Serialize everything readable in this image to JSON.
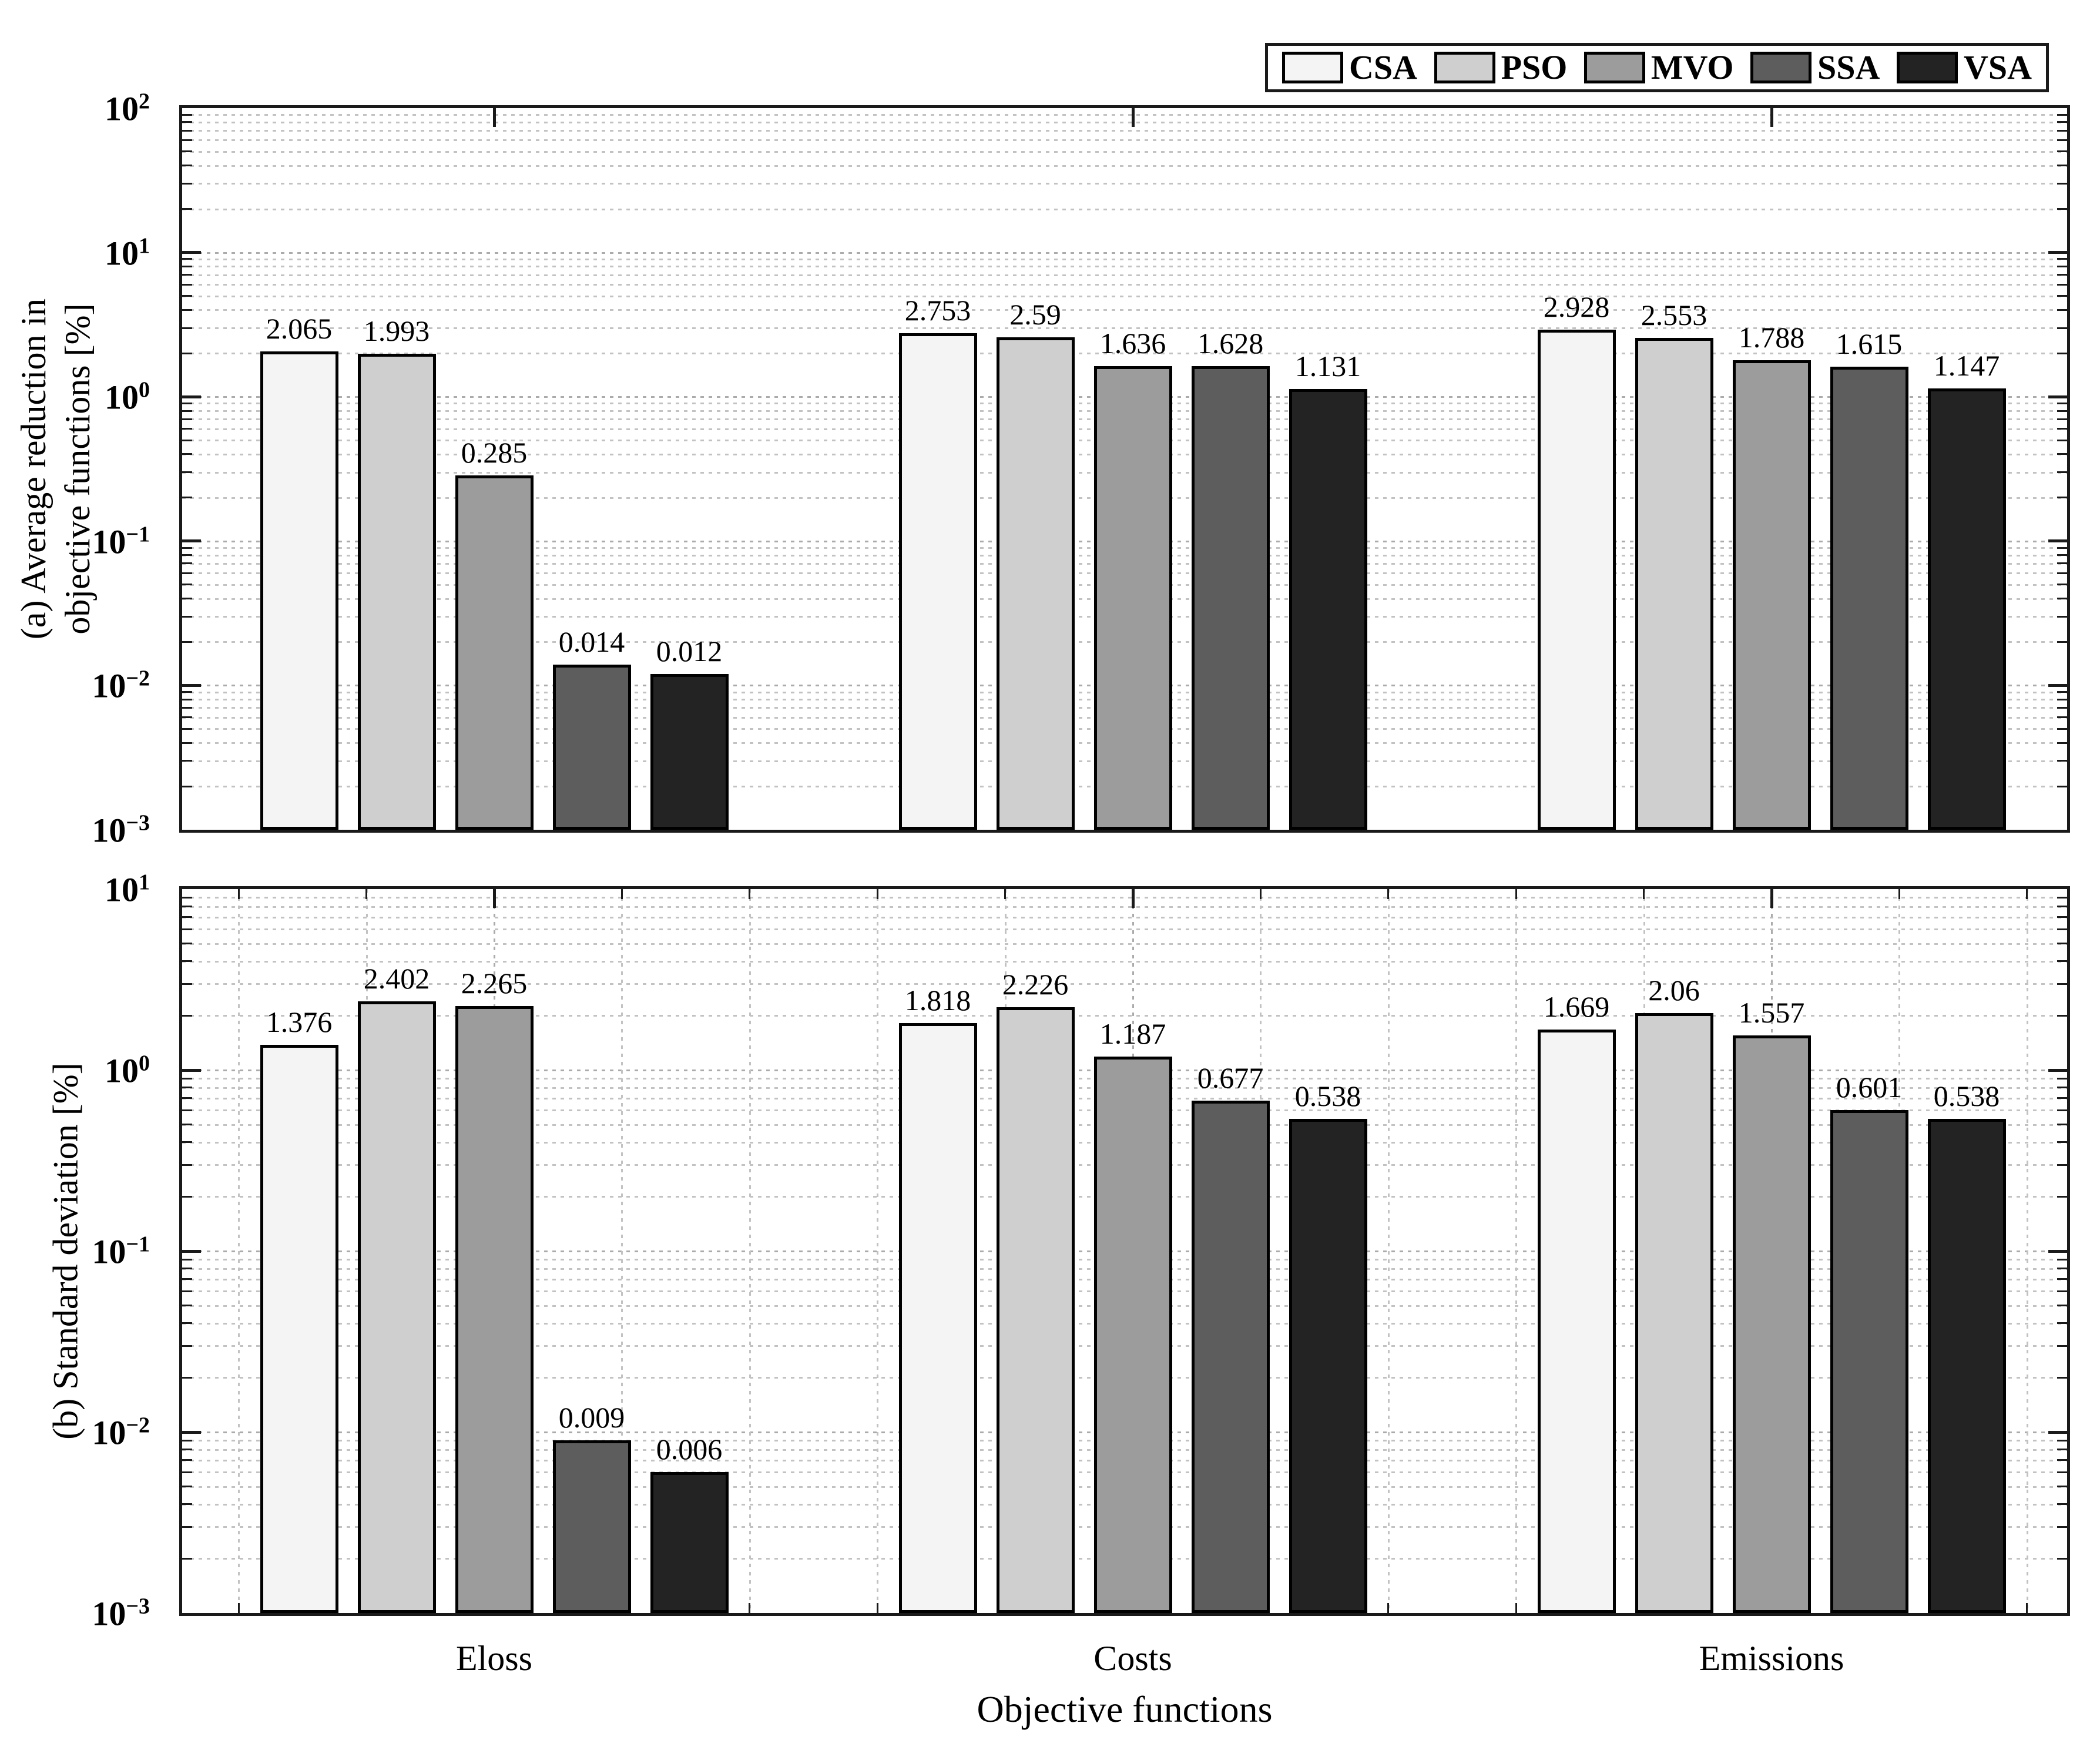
{
  "figure": {
    "xlabel": "Objective functions",
    "categories": [
      "Eloss",
      "Costs",
      "Emissions"
    ],
    "legend_labels": [
      "CSA",
      "PSO",
      "MVO",
      "SSA",
      "VSA"
    ],
    "colors": {
      "CSA": "#f4f4f4",
      "PSO": "#cfcfcf",
      "MVO": "#9c9c9c",
      "SSA": "#5d5d5d",
      "VSA": "#232323"
    },
    "axis_color": "#1a1a1a",
    "grid_color": "#c2c2c2"
  },
  "chart_data": [
    {
      "type": "bar",
      "panel": "a",
      "ylabel": "(a) Average reduction in\nobjective functions [%]",
      "yscale": "log",
      "ylim": [
        0.001,
        100
      ],
      "y_tick_exponents": [
        2,
        1,
        0,
        -1,
        -2,
        -3
      ],
      "categories": [
        "Eloss",
        "Costs",
        "Emissions"
      ],
      "series": [
        {
          "name": "CSA",
          "values": [
            2.065,
            2.753,
            2.928
          ]
        },
        {
          "name": "PSO",
          "values": [
            1.993,
            2.59,
            2.553
          ]
        },
        {
          "name": "MVO",
          "values": [
            0.285,
            1.636,
            1.788
          ]
        },
        {
          "name": "SSA",
          "values": [
            0.014,
            1.628,
            1.615
          ]
        },
        {
          "name": "VSA",
          "values": [
            0.012,
            1.131,
            1.147
          ]
        }
      ],
      "bar_value_labels": true,
      "grid": {
        "y_major": true,
        "y_minor": true,
        "x_major": false,
        "x_minor": false
      },
      "legend_position": "above-top-right"
    },
    {
      "type": "bar",
      "panel": "b",
      "ylabel": "(b) Standard deviation [%]",
      "xlabel": "Objective functions",
      "yscale": "log",
      "ylim": [
        0.001,
        10
      ],
      "y_tick_exponents": [
        1,
        0,
        -1,
        -2,
        -3
      ],
      "categories": [
        "Eloss",
        "Costs",
        "Emissions"
      ],
      "series": [
        {
          "name": "CSA",
          "values": [
            1.376,
            1.818,
            1.669
          ]
        },
        {
          "name": "PSO",
          "values": [
            2.402,
            2.226,
            2.06
          ]
        },
        {
          "name": "MVO",
          "values": [
            2.265,
            1.187,
            1.557
          ]
        },
        {
          "name": "SSA",
          "values": [
            0.009,
            0.677,
            0.601
          ]
        },
        {
          "name": "VSA",
          "values": [
            0.006,
            0.538,
            0.538
          ]
        }
      ],
      "bar_value_labels": true,
      "grid": {
        "y_major": true,
        "y_minor": true,
        "x_major": true,
        "x_minor": true
      },
      "legend_position": "none"
    }
  ]
}
